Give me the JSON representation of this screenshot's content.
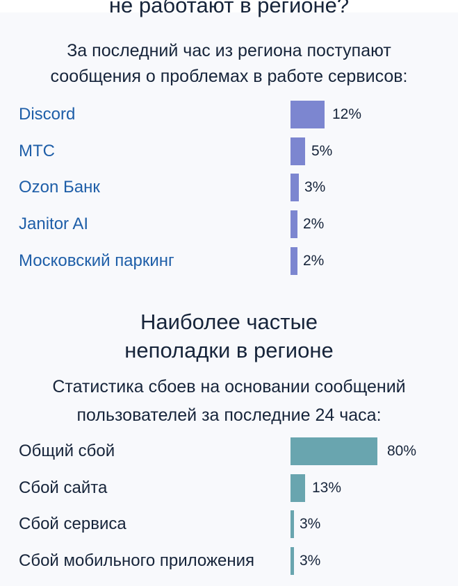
{
  "services_section": {
    "title_partial": "не работают в регионе?",
    "subtitle_line1": "За последний час из региона поступают",
    "subtitle_line2": "сообщения о проблемах в работе сервисов:",
    "bar_color": "#7c86d0",
    "items": [
      {
        "name": "Discord",
        "percent_label": "12%",
        "value": 12
      },
      {
        "name": "МТС",
        "percent_label": "5%",
        "value": 5
      },
      {
        "name": "Ozon Банк",
        "percent_label": "3%",
        "value": 3
      },
      {
        "name": "Janitor AI",
        "percent_label": "2%",
        "value": 2
      },
      {
        "name": "Московский паркинг",
        "percent_label": "2%",
        "value": 2
      }
    ]
  },
  "issues_section": {
    "title_line1": "Наиболее частые",
    "title_line2": "неполадки в регионе",
    "subtitle_line1": "Статистика сбоев на основании сообщений",
    "subtitle_line2": "пользователей за последние 24 часа:",
    "bar_color": "#69a5af",
    "items": [
      {
        "name": "Общий сбой",
        "percent_label": "80%",
        "value": 80
      },
      {
        "name": "Сбой сайта",
        "percent_label": "13%",
        "value": 13
      },
      {
        "name": "Сбой сервиса",
        "percent_label": "3%",
        "value": 3
      },
      {
        "name": "Сбой мобильного приложения",
        "percent_label": "3%",
        "value": 3
      }
    ]
  }
}
